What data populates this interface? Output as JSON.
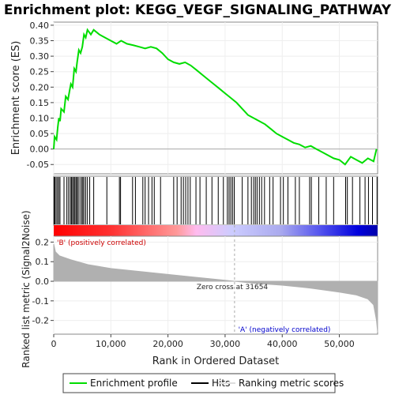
{
  "title": "Enrichment plot: KEGG_VEGF_SIGNALING_PATHWAY",
  "colors": {
    "enrichment": "#00dd00",
    "hits": "#000000",
    "metric": "#b0b0b0",
    "positive": "#ff0000",
    "negative": "#0000ff",
    "zero_line": "#aaaaaa"
  },
  "chart_data": {
    "type": "line",
    "n_genes": 56700,
    "es_panel": {
      "ylabel": "Enrichment score (ES)",
      "ylim": [
        -0.08,
        0.41
      ],
      "yticks": [
        0.4,
        0.35,
        0.3,
        0.25,
        0.2,
        0.15,
        0.1,
        0.05,
        0.0,
        -0.05
      ],
      "ytick_labels": [
        "0.40",
        "0.35",
        "0.30",
        "0.25",
        "0.20",
        "0.15",
        "0.10",
        "0.05",
        "0.00",
        "-0.05"
      ],
      "enrichment_profile": [
        [
          0,
          0.0
        ],
        [
          150,
          0.04
        ],
        [
          500,
          0.03
        ],
        [
          700,
          0.07
        ],
        [
          900,
          0.1
        ],
        [
          1100,
          0.09
        ],
        [
          1300,
          0.13
        ],
        [
          1800,
          0.12
        ],
        [
          2100,
          0.17
        ],
        [
          2500,
          0.16
        ],
        [
          2800,
          0.19
        ],
        [
          3000,
          0.21
        ],
        [
          3300,
          0.2
        ],
        [
          3600,
          0.26
        ],
        [
          3900,
          0.25
        ],
        [
          4100,
          0.28
        ],
        [
          4400,
          0.32
        ],
        [
          4700,
          0.31
        ],
        [
          5000,
          0.33
        ],
        [
          5300,
          0.37
        ],
        [
          5600,
          0.36
        ],
        [
          5900,
          0.385
        ],
        [
          6500,
          0.37
        ],
        [
          7000,
          0.385
        ],
        [
          8000,
          0.37
        ],
        [
          9500,
          0.355
        ],
        [
          11000,
          0.34
        ],
        [
          11800,
          0.35
        ],
        [
          12800,
          0.34
        ],
        [
          14000,
          0.335
        ],
        [
          15000,
          0.33
        ],
        [
          16000,
          0.325
        ],
        [
          17000,
          0.33
        ],
        [
          18000,
          0.325
        ],
        [
          19000,
          0.31
        ],
        [
          20000,
          0.29
        ],
        [
          21000,
          0.28
        ],
        [
          22000,
          0.275
        ],
        [
          23000,
          0.28
        ],
        [
          24000,
          0.27
        ],
        [
          25000,
          0.255
        ],
        [
          26000,
          0.24
        ],
        [
          27000,
          0.225
        ],
        [
          28000,
          0.21
        ],
        [
          29000,
          0.195
        ],
        [
          30000,
          0.18
        ],
        [
          31000,
          0.165
        ],
        [
          32000,
          0.15
        ],
        [
          33000,
          0.13
        ],
        [
          34000,
          0.11
        ],
        [
          35000,
          0.1
        ],
        [
          36000,
          0.09
        ],
        [
          37000,
          0.08
        ],
        [
          38000,
          0.065
        ],
        [
          39000,
          0.05
        ],
        [
          40000,
          0.04
        ],
        [
          41000,
          0.03
        ],
        [
          42000,
          0.02
        ],
        [
          43000,
          0.015
        ],
        [
          44000,
          0.005
        ],
        [
          45000,
          0.01
        ],
        [
          46000,
          0.0
        ],
        [
          47000,
          -0.01
        ],
        [
          48000,
          -0.02
        ],
        [
          49000,
          -0.03
        ],
        [
          50000,
          -0.035
        ],
        [
          51000,
          -0.05
        ],
        [
          52000,
          -0.025
        ],
        [
          53000,
          -0.035
        ],
        [
          54000,
          -0.045
        ],
        [
          55000,
          -0.03
        ],
        [
          56000,
          -0.04
        ],
        [
          56500,
          0.0
        ]
      ]
    },
    "hits": [
      50,
      200,
      420,
      650,
      880,
      1100,
      1800,
      2300,
      2600,
      2900,
      3100,
      3300,
      3500,
      3700,
      3900,
      4100,
      4300,
      4600,
      4900,
      5100,
      5300,
      5600,
      5900,
      6300,
      7000,
      9300,
      11500,
      11700,
      13800,
      14300,
      15600,
      16000,
      16600,
      17200,
      17600,
      18700,
      21000,
      21600,
      22300,
      22700,
      23100,
      23500,
      23900,
      24900,
      25600,
      26700,
      27700,
      28800,
      29700,
      30400,
      30700,
      31000,
      31300,
      31600,
      33000,
      34000,
      34600,
      35000,
      35300,
      35600,
      36000,
      36400,
      36900,
      37800,
      38400,
      39700,
      40200,
      41000,
      42300,
      43000,
      44800,
      45100,
      46400,
      47700,
      49000,
      51100,
      51400,
      52300,
      53600,
      54500,
      55100,
      55800,
      56600
    ],
    "hits_legend_label": "Hits",
    "ranked_list_panel": {
      "ylabel": "Ranked list metric (Signal2Noise)",
      "ylim": [
        -0.27,
        0.23
      ],
      "yticks": [
        0.2,
        0.1,
        0.0,
        -0.1,
        -0.2
      ],
      "ytick_labels": [
        "0.2",
        "0.1",
        "0.0",
        "-0.1",
        "-0.2"
      ],
      "metric_curve": [
        [
          0,
          0.19
        ],
        [
          300,
          0.15
        ],
        [
          1000,
          0.13
        ],
        [
          3000,
          0.11
        ],
        [
          6000,
          0.085
        ],
        [
          10000,
          0.065
        ],
        [
          15000,
          0.05
        ],
        [
          20000,
          0.035
        ],
        [
          25000,
          0.02
        ],
        [
          31654,
          0.0
        ],
        [
          35000,
          -0.01
        ],
        [
          40000,
          -0.02
        ],
        [
          45000,
          -0.035
        ],
        [
          50000,
          -0.055
        ],
        [
          53000,
          -0.07
        ],
        [
          55000,
          -0.09
        ],
        [
          56000,
          -0.12
        ],
        [
          56500,
          -0.2
        ],
        [
          56700,
          -0.26
        ]
      ],
      "zero_cross": 31654,
      "zero_cross_label": "Zero cross at 31654",
      "positive_label": "'B' (positively correlated)",
      "negative_label": "'A' (negatively correlated)"
    },
    "xlabel": "Rank in Ordered Dataset",
    "xlim": [
      0,
      56700
    ],
    "xticks": [
      0,
      10000,
      20000,
      30000,
      40000,
      50000
    ],
    "xtick_labels": [
      "0",
      "10,000",
      "20,000",
      "30,000",
      "40,000",
      "50,000"
    ]
  },
  "legend": {
    "items": [
      {
        "label": "Enrichment profile",
        "kind": "enrichment"
      },
      {
        "label": "Hits",
        "kind": "hits"
      },
      {
        "label": "Ranking metric scores",
        "kind": "metric"
      }
    ]
  }
}
